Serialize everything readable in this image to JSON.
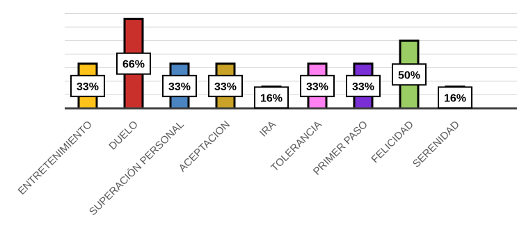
{
  "chart_data": {
    "type": "bar",
    "categories": [
      "ENTRETENIMIENTO",
      "DUELO",
      "SUPERACIÓN PERSONAL",
      "ACEPTACION",
      "IRA",
      "TOLERANCIA",
      "PRIMER PASO",
      "FELICIDAD",
      "SERENIDAD"
    ],
    "values": [
      33,
      66,
      33,
      33,
      16,
      33,
      33,
      50,
      16
    ],
    "data_labels": [
      "33%",
      "66%",
      "33%",
      "33%",
      "16%",
      "33%",
      "33%",
      "50%",
      "16%"
    ],
    "colors": [
      "#ffc21a",
      "#c9302c",
      "#4a84c1",
      "#c9a227",
      "#ffffff",
      "#ff80f0",
      "#7a2fd6",
      "#9acd64",
      "#ffffff"
    ],
    "ylim": [
      0,
      80
    ],
    "grid": true,
    "legend": "none",
    "title": "",
    "xlabel": "",
    "ylabel": ""
  }
}
